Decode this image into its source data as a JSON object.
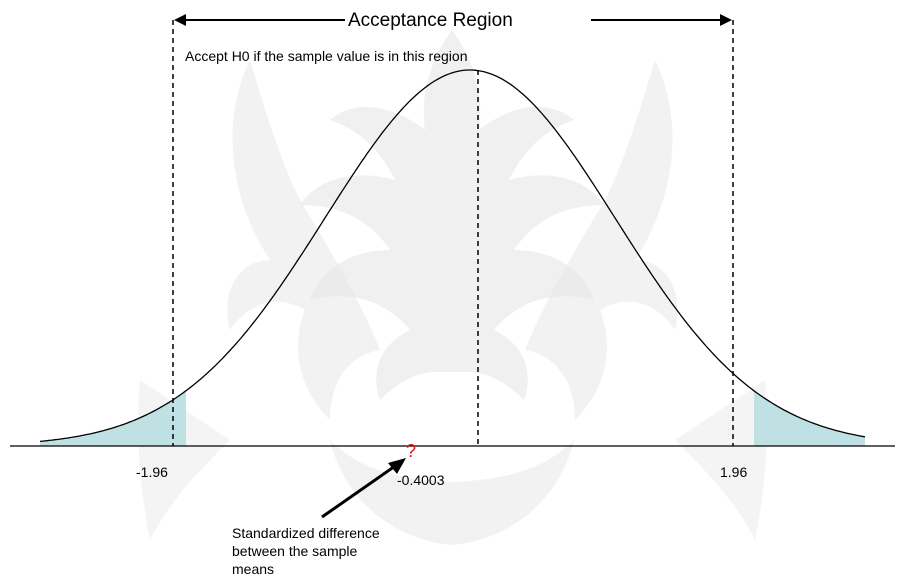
{
  "diagram": {
    "title": "Acceptance Region",
    "subtitle": "Accept H0 if the sample value is in this region",
    "critical_values": {
      "left": -1.96,
      "right": 1.96
    },
    "tick_labels": {
      "left": "-1.96",
      "right": "1.96"
    },
    "sample_value": -0.4003,
    "sample_label": "-0.4003",
    "question_mark": "?",
    "annotation_lines": [
      "Standardized difference",
      "between the sample",
      "means"
    ],
    "colors": {
      "tail_fill": "#bfe1e4",
      "curve": "#000000",
      "question_mark": "#e01010",
      "watermark": "#e6e6e6"
    }
  }
}
